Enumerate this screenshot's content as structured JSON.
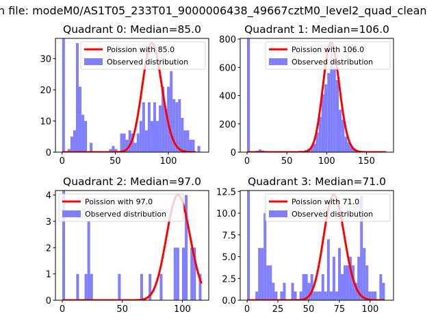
{
  "figure": {
    "suptitle": "n file: modeM0/AS1T05_233T01_9000006438_49667cztM0_level2_quad_clean"
  },
  "colors": {
    "poisson": "#ff0000",
    "observed": "#8080ff"
  },
  "chart_data": [
    {
      "type": "bar",
      "title": "Quadrant 0: Median=85.0",
      "xlim": [
        -6.3,
        138
      ],
      "ylim": [
        0,
        36.5
      ],
      "xticks": [
        0,
        50,
        100
      ],
      "yticks": [
        0,
        10,
        20,
        30
      ],
      "xtick_labels": [
        "0",
        "50",
        "100"
      ],
      "ytick_labels": [
        "0",
        "10",
        "20",
        "30"
      ],
      "bin_start": 0,
      "bin_width": 2.6,
      "counts": [
        40,
        0,
        1,
        5,
        7,
        35,
        21,
        12,
        10,
        0,
        3,
        0,
        0,
        0,
        0,
        0,
        0,
        1,
        2,
        1,
        0,
        6,
        6,
        4,
        7,
        6,
        3,
        6,
        10,
        16,
        7,
        16,
        10,
        16,
        10,
        15,
        21,
        14,
        21,
        26,
        17,
        16,
        17,
        11,
        7,
        7,
        4,
        4,
        0,
        2
      ],
      "poisson": {
        "label": "Poission with 85.0",
        "lambda": 85.0,
        "peak": 35,
        "x_range": [
          0,
          126
        ]
      },
      "observed_label": "Observed distribution",
      "legend": "upper-right"
    },
    {
      "type": "bar",
      "title": "Quadrant 1: Median=106.0",
      "xlim": [
        -8.6,
        184
      ],
      "ylim": [
        0,
        805
      ],
      "xticks": [
        0,
        50,
        100,
        150
      ],
      "yticks": [
        0,
        200,
        400,
        600,
        800
      ],
      "xtick_labels": [
        "0",
        "50",
        "100",
        "150"
      ],
      "ytick_labels": [
        "0",
        "200",
        "400",
        "600",
        "800"
      ],
      "bin_start": 0,
      "bin_width": 3.6,
      "counts": [
        850,
        0,
        0,
        10,
        20,
        12,
        8,
        3,
        2,
        2,
        3,
        2,
        3,
        4,
        5,
        4,
        6,
        5,
        10,
        8,
        15,
        25,
        40,
        60,
        140,
        250,
        410,
        480,
        560,
        700,
        600,
        510,
        300,
        230,
        110,
        70,
        40,
        25,
        15,
        10,
        5,
        2,
        0,
        0,
        0,
        0,
        0,
        0,
        0
      ],
      "poisson": {
        "label": "Poission with 106.0",
        "lambda": 106.0,
        "peak": 775,
        "x_range": [
          0,
          175
        ]
      },
      "observed_label": "Observed distribution",
      "legend": "upper-right"
    },
    {
      "type": "bar",
      "title": "Quadrant 2: Median=97.0",
      "xlim": [
        -5.7,
        122
      ],
      "ylim": [
        0,
        4.17
      ],
      "xticks": [
        0,
        50,
        100
      ],
      "yticks": [
        0,
        1,
        2,
        3,
        4
      ],
      "xtick_labels": [
        "0",
        "50",
        "100"
      ],
      "ytick_labels": [
        "0",
        "1",
        "2",
        "3",
        "4"
      ],
      "bin_start": 0,
      "bin_width": 2.32,
      "counts": [
        5,
        0,
        0,
        0,
        0,
        1,
        0,
        0,
        1,
        3,
        1,
        0,
        0,
        0,
        0,
        0,
        0,
        0,
        0,
        0,
        1,
        0,
        0,
        0,
        0,
        0,
        0,
        0,
        1,
        0,
        0,
        1,
        0,
        0,
        0,
        1,
        0,
        0,
        0,
        0,
        2,
        2,
        0,
        2,
        4,
        0,
        2,
        2,
        0,
        1
      ],
      "poisson": {
        "label": "Poission with 97.0",
        "lambda": 97.0,
        "peak": 4.0,
        "x_range": [
          0,
          116
        ]
      },
      "observed_label": "Observed distribution",
      "legend": "upper-left"
    },
    {
      "type": "bar",
      "title": "Quadrant 3: Median=71.0",
      "xlim": [
        -5.6,
        119
      ],
      "ylim": [
        0,
        12.6
      ],
      "xticks": [
        0,
        25,
        50,
        75,
        100
      ],
      "yticks": [
        0,
        2.5,
        5,
        7.5,
        10,
        12.5
      ],
      "xtick_labels": [
        "0",
        "25",
        "50",
        "75",
        "100"
      ],
      "ytick_labels": [
        "0.0",
        "2.5",
        "5.0",
        "7.5",
        "10.0",
        "12.5"
      ],
      "bin_start": 0,
      "bin_width": 2.24,
      "counts": [
        13,
        0,
        0,
        1,
        6,
        6,
        10,
        4,
        4,
        2,
        1,
        0,
        1,
        2,
        0,
        0,
        2,
        1,
        0,
        1,
        3,
        3,
        2,
        3,
        1,
        1,
        1,
        3,
        1,
        7,
        1,
        5,
        1,
        6,
        3,
        4,
        4,
        5,
        4,
        2,
        5,
        12,
        6,
        4,
        1,
        1,
        1,
        0,
        3,
        2
      ],
      "poisson": {
        "label": "Poission with 71.0",
        "lambda": 71.0,
        "peak": 12.1,
        "x_range": [
          0,
          112
        ]
      },
      "observed_label": "Observed distribution",
      "legend": "upper-right"
    }
  ]
}
